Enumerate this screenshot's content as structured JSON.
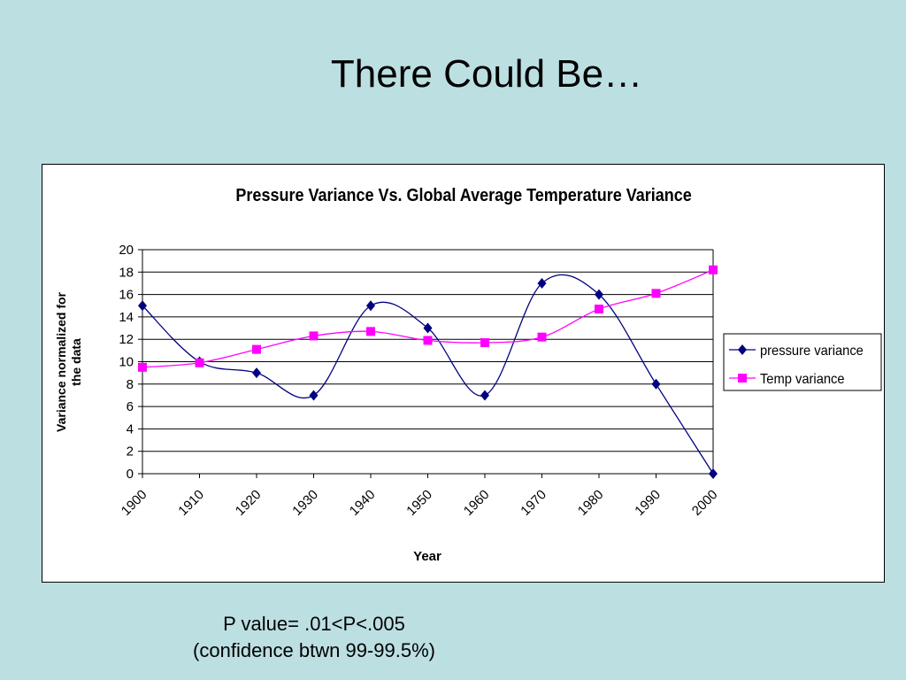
{
  "slide": {
    "title": "There Could Be…",
    "caption_line1": "P value= .01<P<.005",
    "caption_line2": "(confidence btwn 99-99.5%)"
  },
  "colors": {
    "background": "#bcdfe2",
    "pressure_series": "#000080",
    "temp_series": "#ff00ff",
    "gridline": "#000000"
  },
  "chart_data": {
    "type": "line",
    "title": "Pressure Variance Vs. Global Average Temperature Variance",
    "xlabel": "Year",
    "ylabel": "Variance normalized for the data",
    "categories": [
      "1900",
      "1910",
      "1920",
      "1930",
      "1940",
      "1950",
      "1960",
      "1970",
      "1980",
      "1990",
      "2000"
    ],
    "ylim": [
      0,
      20
    ],
    "yticks": [
      0,
      2,
      4,
      6,
      8,
      10,
      12,
      14,
      16,
      18,
      20
    ],
    "grid": true,
    "legend_position": "right",
    "series": [
      {
        "name": "pressure variance",
        "marker": "diamond",
        "smooth": true,
        "values": [
          15,
          10,
          9,
          7,
          15,
          13,
          7,
          17,
          16,
          8,
          0
        ]
      },
      {
        "name": "Temp variance",
        "marker": "square",
        "smooth": true,
        "values": [
          9.5,
          9.9,
          11.1,
          12.3,
          12.7,
          11.9,
          11.7,
          12.2,
          14.7,
          16.1,
          18.2
        ]
      }
    ]
  }
}
